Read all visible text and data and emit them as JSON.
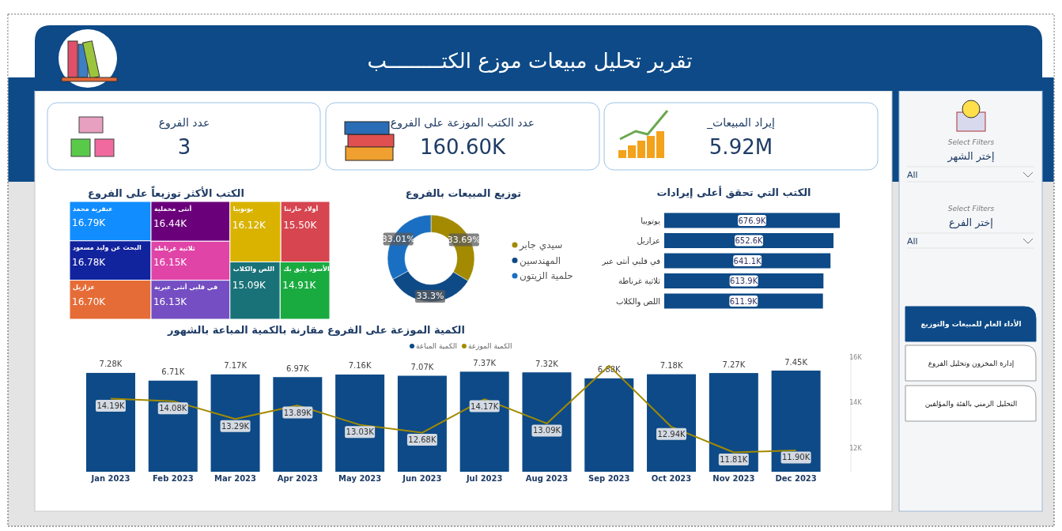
{
  "chart_data": [
    {
      "type": "other",
      "title": "تقرير تحليل مبيعات موزع الكتـــــــــب",
      "annotations": [
        "عدد الفروع",
        "3",
        "عدد الكتب الموزعة على الفروع",
        "160.60K",
        "إيراد المبيعات_",
        "5.92M"
      ]
    },
    {
      "type": "other",
      "title": "الكتب الأكثر توزيعاً على الفروع",
      "categories": [
        "عبقرية محمد",
        "البحث عن وليد مسعود",
        "عزازيل",
        "أنثى مخملية",
        "ثلاثية غرناطة",
        "في قلبي أنثى عبرية",
        "يوتوبيا",
        "أولاد حارتنا",
        "اللص والكلاب",
        "الأسود يليق بك"
      ],
      "values": [
        16.79,
        16.78,
        16.7,
        16.44,
        16.15,
        16.13,
        16.12,
        15.5,
        15.09,
        14.91
      ],
      "value_labels": [
        "16.79K",
        "16.78K",
        "16.70K",
        "16.44K",
        "16.15K",
        "16.13K",
        "16.12K",
        "15.50K",
        "15.09K",
        "14.91K"
      ],
      "colors": [
        "#118DFF",
        "#12239E",
        "#E66C37",
        "#6B007B",
        "#E044A7",
        "#744EC2",
        "#D9B300",
        "#D64550",
        "#197278",
        "#1AAB40"
      ]
    },
    {
      "type": "donut",
      "title": "توزيع المبيعات بالفروع",
      "categories": [
        "سيدي جابر",
        "المهندسين",
        "حلمية الزيتون"
      ],
      "values": [
        33.69,
        33.3,
        33.01
      ],
      "value_labels": [
        "33.69%",
        "33.3%",
        "33.01%"
      ],
      "colors": [
        "#A38A00",
        "#0E4A86",
        "#1B6FC2"
      ],
      "legend": "right"
    },
    {
      "type": "bar",
      "orientation": "horizontal",
      "title": "الكتب التي تحقق أعلى إيرادات",
      "categories": [
        "يوتوبيا",
        "عزازيل",
        "في قلبي أنثى عبر",
        "ثلاثية غرناطة",
        "اللص والكلاب"
      ],
      "values": [
        676.9,
        652.6,
        641.1,
        613.9,
        611.9
      ],
      "value_labels": [
        "676.9K",
        "652.6K",
        "641.1K",
        "613.9K",
        "611.9K"
      ],
      "color": "#0D4A87"
    },
    {
      "type": "bar",
      "title": "الكمية الموزعة على الفروع مقارنة بالكمية المباعة بالشهور",
      "categories": [
        "Jan 2023",
        "Feb 2023",
        "Mar 2023",
        "Apr 2023",
        "May 2023",
        "Jun 2023",
        "Jul 2023",
        "Aug 2023",
        "Sep 2023",
        "Oct 2023",
        "Nov 2023",
        "Dec 2023"
      ],
      "y2lim": [
        10.95,
        16.1
      ],
      "y2ticks": [
        {
          "value": 12,
          "label": "12K"
        },
        {
          "value": 14,
          "label": "14K"
        },
        {
          "value": 16,
          "label": "16K"
        }
      ],
      "legend": "top",
      "series": [
        {
          "name": "الكمية المباعة",
          "type": "bar",
          "color": "#0D4A87",
          "values": [
            7.28,
            6.71,
            7.17,
            6.97,
            7.16,
            7.07,
            7.37,
            7.32,
            6.88,
            7.18,
            7.27,
            7.45
          ],
          "value_labels": [
            "7.28K",
            "6.71K",
            "7.17K",
            "6.97K",
            "7.16K",
            "7.07K",
            "7.37K",
            "7.32K",
            "6.88K",
            "7.18K",
            "7.27K",
            "7.45K"
          ]
        },
        {
          "name": "الكمية الموزعة",
          "type": "line",
          "axis": "y2",
          "color": "#A38A00",
          "values": [
            14.19,
            14.08,
            13.29,
            13.89,
            13.03,
            12.68,
            14.17,
            13.09,
            15.65,
            12.94,
            11.81,
            11.9
          ],
          "value_labels": [
            "14.19K",
            "14.08K",
            "13.29K",
            "13.89K",
            "13.03K",
            "12.68K",
            "14.17K",
            "13.09K",
            null,
            "12.94K",
            "11.81K",
            "11.90K"
          ]
        }
      ]
    },
    {
      "type": "other",
      "annotations": [
        "Select Filters",
        "إختر الشهر",
        "All",
        "Select Filters",
        "إختر الفرع",
        "All",
        "الأداء العام للمبيعات والتوزيع",
        "إدارة المخزون وتحليل الفروع",
        "التحليل الزمني بالفئة والمؤلفين"
      ]
    }
  ]
}
